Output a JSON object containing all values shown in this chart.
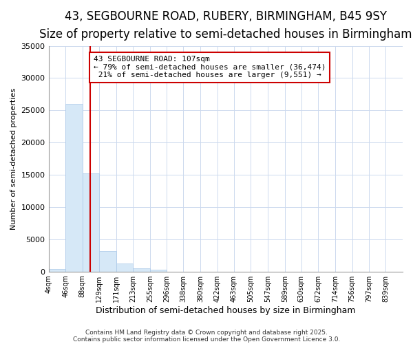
{
  "title1": "43, SEGBOURNE ROAD, RUBERY, BIRMINGHAM, B45 9SY",
  "title2": "Size of property relative to semi-detached houses in Birmingham",
  "xlabel": "Distribution of semi-detached houses by size in Birmingham",
  "ylabel": "Number of semi-detached properties",
  "footer1": "Contains HM Land Registry data © Crown copyright and database right 2025.",
  "footer2": "Contains public sector information licensed under the Open Government Licence 3.0.",
  "bin_labels": [
    "4sqm",
    "46sqm",
    "88sqm",
    "129sqm",
    "171sqm",
    "213sqm",
    "255sqm",
    "296sqm",
    "338sqm",
    "380sqm",
    "422sqm",
    "463sqm",
    "505sqm",
    "547sqm",
    "589sqm",
    "630sqm",
    "672sqm",
    "714sqm",
    "756sqm",
    "797sqm",
    "839sqm"
  ],
  "bin_edges": [
    4,
    46,
    88,
    129,
    171,
    213,
    255,
    296,
    338,
    380,
    422,
    463,
    505,
    547,
    589,
    630,
    672,
    714,
    756,
    797,
    839
  ],
  "bar_heights": [
    400,
    26000,
    15200,
    3150,
    1200,
    450,
    280,
    0,
    0,
    0,
    0,
    0,
    0,
    0,
    0,
    0,
    0,
    0,
    0,
    0,
    0
  ],
  "bar_color": "#d6e8f7",
  "bar_edge_color": "#aac8e8",
  "property_size": 107,
  "pct_smaller": 79,
  "pct_larger": 21,
  "n_smaller": 36474,
  "n_larger": 9551,
  "vline_color": "#cc0000",
  "annotation_box_color": "#cc0000",
  "ylim": [
    0,
    35000
  ],
  "yticks": [
    0,
    5000,
    10000,
    15000,
    20000,
    25000,
    30000,
    35000
  ],
  "bg_color": "#ffffff",
  "plot_bg_color": "#ffffff",
  "title_fontsize": 12,
  "subtitle_fontsize": 10,
  "grid_color": "#ccd9ee"
}
